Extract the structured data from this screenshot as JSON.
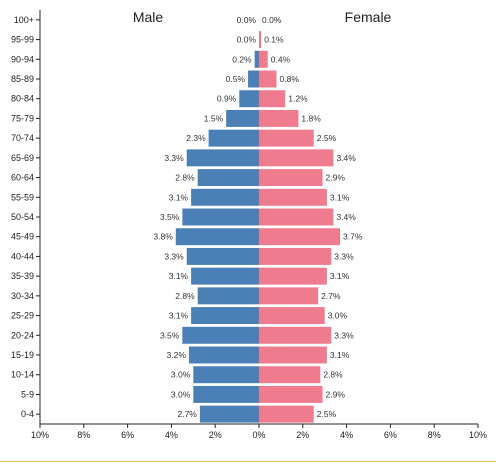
{
  "chart_data": {
    "type": "bar",
    "orientation": "horizontal",
    "layout": "population-pyramid",
    "categories": [
      "0-4",
      "5-9",
      "10-14",
      "15-19",
      "20-24",
      "25-29",
      "30-34",
      "35-39",
      "40-44",
      "45-49",
      "50-54",
      "55-59",
      "60-64",
      "65-69",
      "70-74",
      "75-79",
      "80-84",
      "85-89",
      "90-94",
      "95-99",
      "100+"
    ],
    "series": [
      {
        "name": "Male",
        "side": "left",
        "color": "#4a80b5",
        "values": [
          2.7,
          3.0,
          3.0,
          3.2,
          3.5,
          3.1,
          2.8,
          3.1,
          3.3,
          3.8,
          3.5,
          3.1,
          2.8,
          3.3,
          2.3,
          1.5,
          0.9,
          0.5,
          0.2,
          0.0,
          0.0
        ],
        "labels": [
          "2.7%",
          "3.0%",
          "3.0%",
          "3.2%",
          "3.5%",
          "3.1%",
          "2.8%",
          "3.1%",
          "3.3%",
          "3.8%",
          "3.5%",
          "3.1%",
          "2.8%",
          "3.3%",
          "2.3%",
          "1.5%",
          "0.9%",
          "0.5%",
          "0.2%",
          "0.0%",
          "0.0%"
        ]
      },
      {
        "name": "Female",
        "side": "right",
        "color": "#ef7c8e",
        "values": [
          2.5,
          2.9,
          2.8,
          3.1,
          3.3,
          3.0,
          2.7,
          3.1,
          3.3,
          3.7,
          3.4,
          3.1,
          2.9,
          3.4,
          2.5,
          1.8,
          1.2,
          0.8,
          0.4,
          0.1,
          0.0
        ],
        "labels": [
          "2.5%",
          "2.9%",
          "2.8%",
          "3.1%",
          "3.3%",
          "3.0%",
          "2.7%",
          "3.1%",
          "3.3%",
          "3.7%",
          "3.4%",
          "3.1%",
          "2.9%",
          "3.4%",
          "2.5%",
          "1.8%",
          "1.2%",
          "0.8%",
          "0.4%",
          "0.1%",
          "0.0%"
        ]
      }
    ],
    "xlim": [
      -10,
      10
    ],
    "xticks": [
      -10,
      -8,
      -6,
      -4,
      -2,
      0,
      2,
      4,
      6,
      8,
      10
    ],
    "xtick_labels": [
      "10%",
      "8%",
      "6%",
      "4%",
      "2%",
      "0%",
      "2%",
      "4%",
      "6%",
      "8%",
      "10%"
    ],
    "title": "",
    "xlabel": "",
    "ylabel": "",
    "grid": false,
    "legend": "none"
  }
}
